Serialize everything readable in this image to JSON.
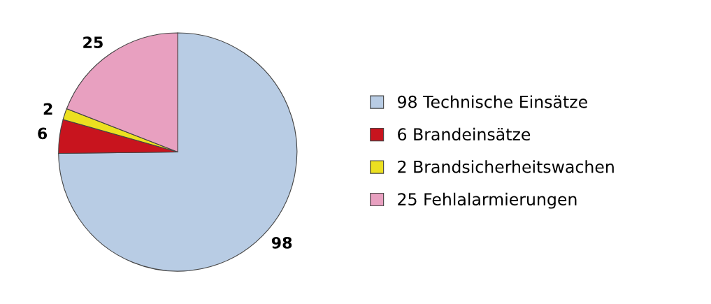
{
  "chart_data": {
    "type": "pie",
    "categories": [
      "98 Technische Einsätze",
      "6 Brandeinsätze",
      "2 Brandsicherheitswachen",
      "25 Fehlalarmierungen"
    ],
    "values": [
      98,
      6,
      2,
      25
    ],
    "colors": [
      "#b8cce4",
      "#c8141e",
      "#ece020",
      "#e8a0c0"
    ],
    "data_labels": true,
    "legend": "right"
  }
}
